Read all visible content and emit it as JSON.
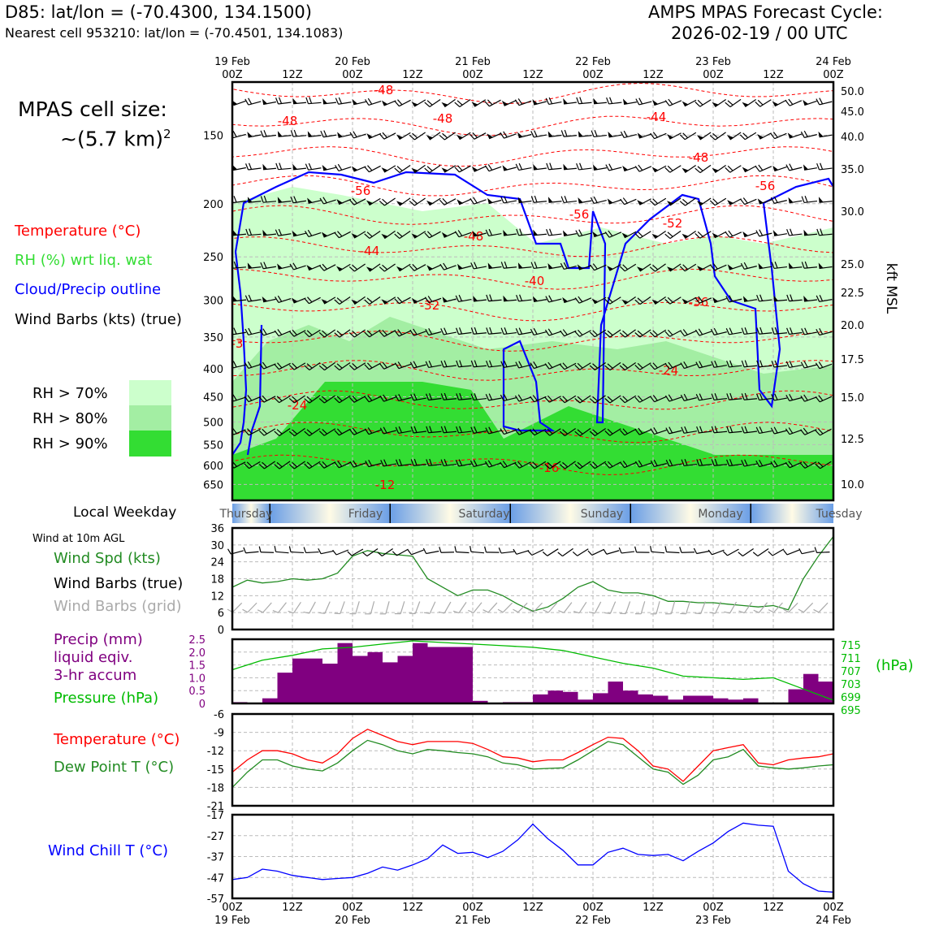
{
  "header": {
    "station_line": "D85: lat/lon = (-70.4300, 134.1500)",
    "cell_line": "Nearest cell 953210: lat/lon = (-70.4501, 134.1083)",
    "cycle_line1": "AMPS MPAS Forecast Cycle:",
    "cycle_line2": "2026-02-19 / 00 UTC"
  },
  "cell_size": {
    "line1": "MPAS cell size:",
    "line2": "~(5.7 km)",
    "sup": "2"
  },
  "legend": {
    "temperature": "Temperature (°C)",
    "rh": "RH (%) wrt liq. wat",
    "cloud": "Cloud/Precip outline",
    "barbs": "Wind Barbs (kts) (true)",
    "rh_keys": [
      {
        "label": "RH > 70%",
        "color": "#ccffcc"
      },
      {
        "label": "RH > 80%",
        "color": "#a3eea3"
      },
      {
        "label": "RH > 90%",
        "color": "#33dd33"
      }
    ]
  },
  "weekday": {
    "label": "Local Weekday",
    "days": [
      "Thursday",
      "Friday",
      "Saturday",
      "Sunday",
      "Monday",
      "Tuesday"
    ]
  },
  "panel_labels": {
    "wind_heading": "Wind at 10m AGL",
    "wind_speed": "Wind Spd (kts)",
    "wind_true": "Wind Barbs (true)",
    "wind_grid": "Wind Barbs (grid)",
    "precip1": "Precip (mm)",
    "precip2": "liquid eqiv.",
    "precip3": "3-hr accum",
    "pressure": "Pressure (hPa)",
    "pressure_unit": "(hPa)",
    "temp": "Temperature (°C)",
    "dew": "Dew Point T (°C)",
    "chill": "Wind Chill T (°C)"
  },
  "colors": {
    "temperature": "#ff0000",
    "rh_label": "#33cc33",
    "cloud": "#0000ff",
    "wind_speed": "#228b22",
    "precip": "#800080",
    "pressure": "#00bb00",
    "dewpoint": "#228b22",
    "chill": "#0000ff",
    "grid_barbs": "#aaaaaa"
  },
  "chart_data": [
    {
      "type": "heatmap",
      "description_note": "",
      "x_top_ticks": [
        {
          "top": "19 Feb",
          "bottom": "00Z"
        },
        {
          "top": "",
          "bottom": "12Z"
        },
        {
          "top": "20 Feb",
          "bottom": "00Z"
        },
        {
          "top": "",
          "bottom": "12Z"
        },
        {
          "top": "21 Feb",
          "bottom": "00Z"
        },
        {
          "top": "",
          "bottom": "12Z"
        },
        {
          "top": "22 Feb",
          "bottom": "00Z"
        },
        {
          "top": "",
          "bottom": "12Z"
        },
        {
          "top": "23 Feb",
          "bottom": "00Z"
        },
        {
          "top": "",
          "bottom": "12Z"
        },
        {
          "top": "24 Feb",
          "bottom": "00Z"
        }
      ],
      "ylabel_left": "",
      "pressure_ticks": [
        "150",
        "200",
        "250",
        "300",
        "350",
        "400",
        "450",
        "500",
        "550",
        "600",
        "650"
      ],
      "ylabel_right": "kft MSL",
      "kft_ticks": [
        "50.0",
        "45.0",
        "40.0",
        "35.0",
        "30.0",
        "25.0",
        "22.5",
        "20.0",
        "17.5",
        "15.0",
        "12.5",
        "10.0"
      ],
      "ylim_hpa": [
        695,
        120
      ],
      "temperature_contour_labels": [
        "-48",
        "-48",
        "-48",
        "-44",
        "-48",
        "-56",
        "-56",
        "-56",
        "-52",
        "-48",
        "-44",
        "-40",
        "-32",
        "-36",
        "-24",
        "-24",
        "-16",
        "-12",
        "-3"
      ]
    },
    {
      "type": "line",
      "title": "",
      "ylim": [
        0,
        36
      ],
      "y_ticks": [
        "36",
        "30",
        "24",
        "18",
        "12",
        "6",
        "0"
      ],
      "x_hours": [
        0,
        3,
        6,
        9,
        12,
        15,
        18,
        21,
        24,
        27,
        30,
        33,
        36,
        39,
        42,
        45,
        48,
        51,
        54,
        57,
        60,
        63,
        66,
        69,
        72,
        75,
        78,
        81,
        84,
        87,
        90,
        93,
        96,
        99,
        102,
        105,
        108,
        111,
        114,
        117,
        120
      ],
      "series": [
        {
          "name": "Wind Spd (kts)",
          "values": [
            15,
            17.5,
            16.5,
            17,
            18,
            17.5,
            18,
            20,
            26,
            28,
            27,
            26.5,
            26,
            18,
            15,
            12,
            14,
            14,
            12,
            9,
            6.5,
            8,
            11,
            15,
            17,
            14,
            13,
            13,
            12,
            10,
            10,
            9.5,
            9.5,
            9,
            8.5,
            8,
            8.5,
            7,
            18,
            26,
            33
          ]
        }
      ]
    },
    {
      "type": "bar",
      "ylim": [
        0,
        2.5
      ],
      "y_ticks": [
        "2.5",
        "2.0",
        "1.5",
        "1.0",
        "0.5",
        "0"
      ],
      "y2_ticks": [
        "715",
        "711",
        "707",
        "703",
        "699",
        "695"
      ],
      "ylim2": [
        695,
        715
      ],
      "categories_hours": [
        0,
        3,
        6,
        9,
        12,
        15,
        18,
        21,
        24,
        27,
        30,
        33,
        36,
        39,
        42,
        45,
        48,
        51,
        54,
        57,
        60,
        63,
        66,
        69,
        72,
        75,
        78,
        81,
        84,
        87,
        90,
        93,
        96,
        99,
        102,
        105,
        108,
        111,
        114,
        117
      ],
      "series": [
        {
          "name": "Precip (mm)",
          "values": [
            0.05,
            0.0,
            0.2,
            1.2,
            1.75,
            1.75,
            1.55,
            2.35,
            1.85,
            2.0,
            1.6,
            1.85,
            2.35,
            2.2,
            2.2,
            2.2,
            0.1,
            0.0,
            0.05,
            0.05,
            0.35,
            0.5,
            0.45,
            0.15,
            0.4,
            0.85,
            0.5,
            0.35,
            0.3,
            0.15,
            0.3,
            0.3,
            0.2,
            0.15,
            0.2,
            0.0,
            0.0,
            0.55,
            1.15,
            0.85
          ]
        },
        {
          "name": "Pressure (hPa)",
          "values_x_hours": [
            0,
            6,
            12,
            18,
            24,
            30,
            36,
            42,
            48,
            54,
            60,
            66,
            72,
            78,
            84,
            90,
            96,
            102,
            108,
            114,
            120
          ],
          "values": [
            705.5,
            708.5,
            710,
            712,
            712.5,
            713.5,
            714.5,
            714,
            713.5,
            713,
            712.5,
            711.5,
            709.5,
            707.5,
            706,
            703.5,
            703,
            702.5,
            703,
            699.5,
            696
          ]
        }
      ]
    },
    {
      "type": "line",
      "ylim": [
        -21,
        -6
      ],
      "y_ticks": [
        "-6",
        "-9",
        "-12",
        "-15",
        "-18",
        "-21"
      ],
      "x_hours": [
        0,
        3,
        6,
        9,
        12,
        15,
        18,
        21,
        24,
        27,
        30,
        33,
        36,
        39,
        42,
        45,
        48,
        51,
        54,
        57,
        60,
        63,
        66,
        69,
        72,
        75,
        78,
        81,
        84,
        87,
        90,
        93,
        96,
        99,
        102,
        105,
        108,
        111,
        114,
        117,
        120
      ],
      "series": [
        {
          "name": "Temperature (°C)",
          "values": [
            -15.5,
            -13.5,
            -12,
            -12,
            -12.5,
            -13.5,
            -14,
            -12.5,
            -10,
            -8.5,
            -9.5,
            -10.5,
            -11,
            -10.5,
            -10.5,
            -10.5,
            -10.8,
            -11.8,
            -13,
            -13.2,
            -13.8,
            -13.5,
            -13.5,
            -12.3,
            -11,
            -9.8,
            -10,
            -12,
            -14.5,
            -15,
            -17,
            -14.5,
            -12,
            -11.5,
            -11,
            -14,
            -14.3,
            -13.5,
            -13.2,
            -13,
            -12.5
          ]
        },
        {
          "name": "Dew Point T (°C)",
          "values": [
            -18,
            -15.5,
            -13.5,
            -13.5,
            -14.5,
            -15,
            -15.3,
            -14,
            -12,
            -10.3,
            -11,
            -12,
            -12.5,
            -11.8,
            -12,
            -12.3,
            -12.5,
            -13,
            -14,
            -14.3,
            -15,
            -14.9,
            -14.8,
            -13.5,
            -12,
            -10.5,
            -11,
            -13,
            -15,
            -15.5,
            -17.5,
            -16,
            -13.5,
            -13,
            -11.8,
            -14.5,
            -14.8,
            -15,
            -14.8,
            -14.5,
            -14.3
          ]
        }
      ]
    },
    {
      "type": "line",
      "ylim": [
        -57,
        -17
      ],
      "y_ticks": [
        "-17",
        "-27",
        "-37",
        "-47",
        "-57"
      ],
      "x_hours": [
        0,
        3,
        6,
        9,
        12,
        15,
        18,
        21,
        24,
        27,
        30,
        33,
        36,
        39,
        42,
        45,
        48,
        51,
        54,
        57,
        60,
        63,
        66,
        69,
        72,
        75,
        78,
        81,
        84,
        87,
        90,
        93,
        96,
        99,
        102,
        105,
        108,
        111,
        114,
        117,
        120
      ],
      "series": [
        {
          "name": "Wind Chill T (°C)",
          "values": [
            -48,
            -47,
            -43,
            -44,
            -46,
            -47,
            -48,
            -47.5,
            -47,
            -45,
            -42,
            -43.5,
            -41,
            -38,
            -31.5,
            -35.5,
            -35,
            -37.5,
            -34.5,
            -29,
            -21.5,
            -28.5,
            -34,
            -41,
            -41,
            -35,
            -33,
            -36,
            -36.5,
            -36,
            -39,
            -34.5,
            -30.5,
            -25,
            -21,
            -22,
            -22.5,
            -44,
            -50,
            -53.5,
            -54
          ]
        }
      ]
    }
  ],
  "bottom_axis": [
    {
      "top": "00Z",
      "bottom": "19 Feb"
    },
    {
      "top": "12Z",
      "bottom": ""
    },
    {
      "top": "00Z",
      "bottom": "20 Feb"
    },
    {
      "top": "12Z",
      "bottom": ""
    },
    {
      "top": "00Z",
      "bottom": "21 Feb"
    },
    {
      "top": "12Z",
      "bottom": ""
    },
    {
      "top": "00Z",
      "bottom": "22 Feb"
    },
    {
      "top": "12Z",
      "bottom": ""
    },
    {
      "top": "00Z",
      "bottom": "23 Feb"
    },
    {
      "top": "12Z",
      "bottom": ""
    },
    {
      "top": "00Z",
      "bottom": "24 Feb"
    }
  ]
}
